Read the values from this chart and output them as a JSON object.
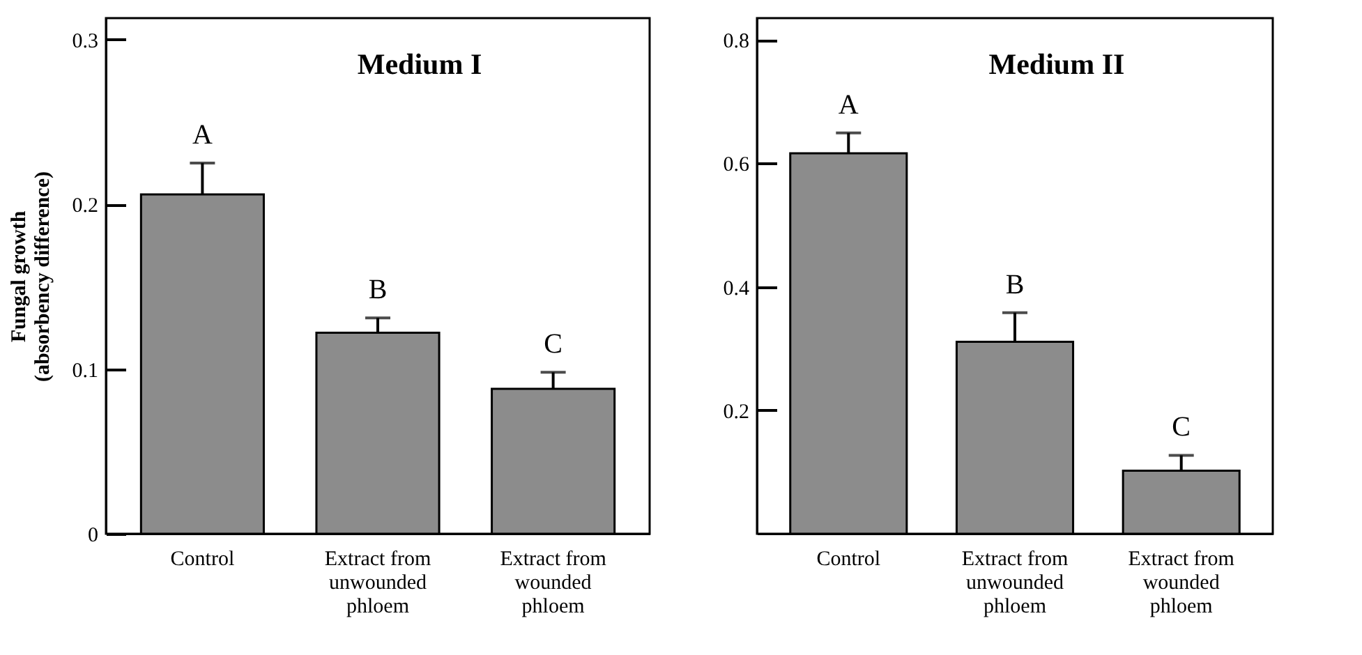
{
  "chart_data": [
    {
      "type": "bar",
      "title": "Medium I",
      "ylabel": "Fungal growth\n(absorbency difference)",
      "categories": [
        "Control",
        "Extract from unwounded phloem",
        "Extract from wounded phloem"
      ],
      "values": [
        0.206,
        0.122,
        0.088
      ],
      "errors": [
        [
          0.206,
          0.225
        ],
        [
          0.122,
          0.131
        ],
        [
          0.088,
          0.098
        ]
      ],
      "color": "#8c8c8c",
      "ylim": [
        0,
        0.313
      ],
      "yticks": [
        0,
        0.1,
        0.2,
        0.3
      ],
      "annotations": [
        {
          "text": "A",
          "x": "Control",
          "y": 0.225
        },
        {
          "text": "B",
          "x": "Extract from unwounded phloem",
          "y": 0.131
        },
        {
          "text": "C",
          "x": "Extract from wounded phloem",
          "y": 0.098
        }
      ]
    },
    {
      "type": "bar",
      "title": "Medium II",
      "categories": [
        "Control",
        "Extract  from unwounded phloem",
        "Extract  from wounded phloem"
      ],
      "values": [
        0.616,
        0.311,
        0.102
      ],
      "errors": [
        [
          0.616,
          0.649
        ],
        [
          0.311,
          0.358
        ],
        [
          0.102,
          0.127
        ]
      ],
      "color": "#8c8c8c",
      "ylim": [
        0,
        0.835
      ],
      "yticks": [
        0.2,
        0.4,
        0.6,
        0.8
      ],
      "annotations": [
        {
          "text": "A",
          "x": "Control",
          "y": 0.649
        },
        {
          "text": "B",
          "x": "Extract  from unwounded phloem",
          "y": 0.358
        },
        {
          "text": "C",
          "x": "Extract  from wounded phloem",
          "y": 0.127
        }
      ]
    }
  ]
}
